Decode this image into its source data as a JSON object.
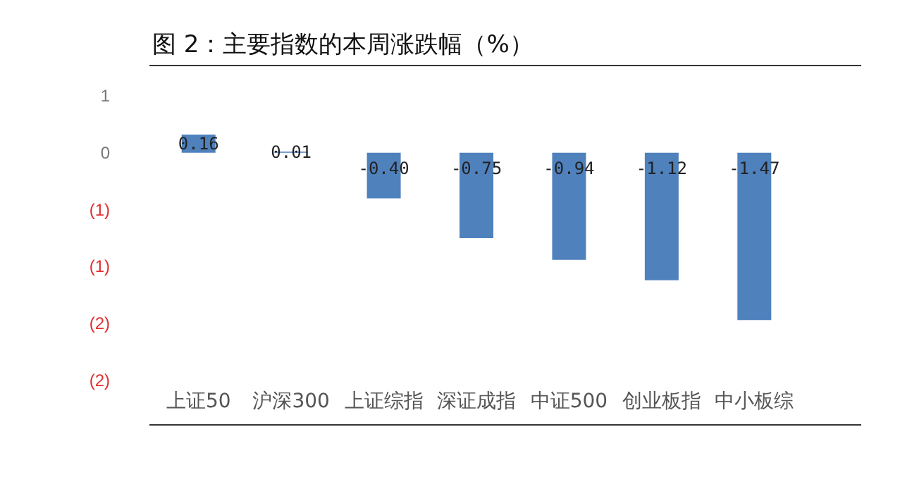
{
  "chart_data": {
    "type": "bar",
    "title": "图 2：主要指数的本周涨跌幅（%）",
    "categories": [
      "上证50",
      "沪深300",
      "上证综指",
      "深证成指",
      "中证500",
      "创业板指",
      "中小板综"
    ],
    "values": [
      0.16,
      0.01,
      -0.4,
      -0.75,
      -0.94,
      -1.12,
      -1.47
    ],
    "color": "#4f81bd",
    "ylim": [
      -2,
      0.5
    ],
    "yticks": [
      {
        "value": 0.5,
        "label": "1"
      },
      {
        "value": 0,
        "label": "0"
      },
      {
        "value": -0.5,
        "label": "(1)"
      },
      {
        "value": -1,
        "label": "(1)"
      },
      {
        "value": -1.5,
        "label": "(2)"
      },
      {
        "value": -2,
        "label": "(2)"
      }
    ],
    "value_labels": [
      "0.16",
      "0.01",
      "-0.40",
      "-0.75",
      "-0.94",
      "-1.12",
      "-1.47"
    ],
    "grid": false
  }
}
